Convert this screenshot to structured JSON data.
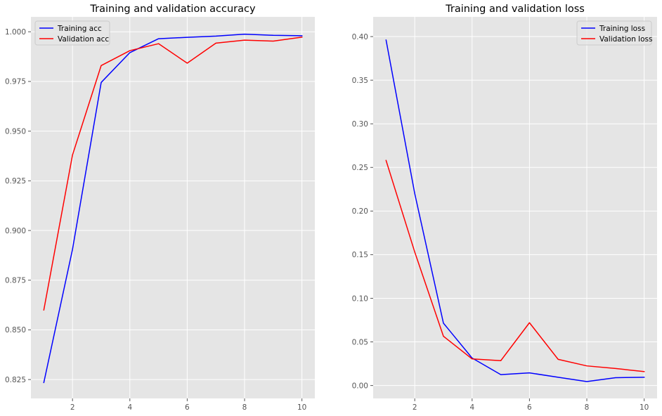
{
  "chart_data": [
    {
      "type": "line",
      "title": "Training and validation accuracy",
      "xlabel": "",
      "ylabel": "",
      "x": [
        1,
        2,
        3,
        4,
        5,
        6,
        7,
        8,
        9,
        10
      ],
      "xticks": [
        2,
        4,
        6,
        8,
        10
      ],
      "yticks": [
        0.825,
        0.85,
        0.875,
        0.9,
        0.925,
        0.95,
        0.975,
        1.0
      ],
      "ytick_labels": [
        "0.825",
        "0.850",
        "0.875",
        "0.900",
        "0.925",
        "0.950",
        "0.975",
        "1.000"
      ],
      "xlim": [
        0.55,
        10.45
      ],
      "ylim": [
        0.8155,
        1.0075
      ],
      "grid": true,
      "legend_position": "top-left",
      "series": [
        {
          "name": "Training acc",
          "color": "#0000ff",
          "values": [
            0.8235,
            0.8905,
            0.9745,
            0.9895,
            0.9965,
            0.9972,
            0.9978,
            0.9988,
            0.9982,
            0.998
          ]
        },
        {
          "name": "Validation acc",
          "color": "#ff0000",
          "values": [
            0.86,
            0.938,
            0.983,
            0.9905,
            0.994,
            0.9842,
            0.9943,
            0.9958,
            0.9953,
            0.9973
          ]
        }
      ]
    },
    {
      "type": "line",
      "title": "Training and validation loss",
      "xlabel": "",
      "ylabel": "",
      "x": [
        1,
        2,
        3,
        4,
        5,
        6,
        7,
        8,
        9,
        10
      ],
      "xticks": [
        2,
        4,
        6,
        8,
        10
      ],
      "yticks": [
        0.0,
        0.05,
        0.1,
        0.15,
        0.2,
        0.25,
        0.3,
        0.35,
        0.4
      ],
      "ytick_labels": [
        "0.00",
        "0.05",
        "0.10",
        "0.15",
        "0.20",
        "0.25",
        "0.30",
        "0.35",
        "0.40"
      ],
      "xlim": [
        0.55,
        10.45
      ],
      "ylim": [
        -0.0148,
        0.4226
      ],
      "grid": true,
      "legend_position": "top-right",
      "series": [
        {
          "name": "Training loss",
          "color": "#0000ff",
          "values": [
            0.396,
            0.22,
            0.0715,
            0.0315,
            0.0125,
            0.0145,
            0.0095,
            0.0045,
            0.009,
            0.0095
          ]
        },
        {
          "name": "Validation loss",
          "color": "#ff0000",
          "values": [
            0.258,
            0.153,
            0.0565,
            0.0305,
            0.0285,
            0.072,
            0.03,
            0.0225,
            0.0195,
            0.016
          ]
        }
      ]
    }
  ]
}
